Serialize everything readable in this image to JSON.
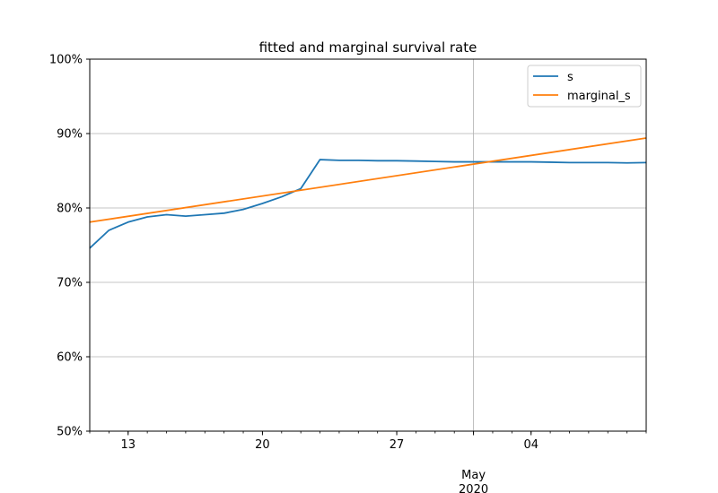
{
  "chart_data": {
    "type": "line",
    "title": "fitted and marginal survival rate",
    "xlabel": "",
    "ylabel": "",
    "ylim": [
      0.5,
      1.0
    ],
    "xlim": [
      "2020-04-11",
      "2020-05-10"
    ],
    "y_ticks": [
      0.5,
      0.6,
      0.7,
      0.8,
      0.9,
      1.0
    ],
    "y_tick_labels": [
      "50%",
      "60%",
      "70%",
      "80%",
      "90%",
      "100%"
    ],
    "x_major_ticks": [
      "2020-04-13",
      "2020-04-20",
      "2020-04-27",
      "2020-05-04"
    ],
    "x_major_labels": [
      "13",
      "20",
      "27",
      "04"
    ],
    "x_month_label": {
      "date": "2020-05-01",
      "month": "May",
      "year": "2020"
    },
    "grid": true,
    "legend_position": "top-right",
    "series": [
      {
        "name": "s",
        "color": "#1f77b4",
        "x": [
          "2020-04-11",
          "2020-04-12",
          "2020-04-13",
          "2020-04-14",
          "2020-04-15",
          "2020-04-16",
          "2020-04-17",
          "2020-04-18",
          "2020-04-19",
          "2020-04-20",
          "2020-04-21",
          "2020-04-22",
          "2020-04-23",
          "2020-04-24",
          "2020-04-25",
          "2020-04-26",
          "2020-04-27",
          "2020-04-28",
          "2020-04-29",
          "2020-04-30",
          "2020-05-01",
          "2020-05-02",
          "2020-05-03",
          "2020-05-04",
          "2020-05-05",
          "2020-05-06",
          "2020-05-07",
          "2020-05-08",
          "2020-05-09",
          "2020-05-10"
        ],
        "values": [
          0.746,
          0.77,
          0.781,
          0.788,
          0.791,
          0.789,
          0.791,
          0.793,
          0.798,
          0.806,
          0.815,
          0.826,
          0.865,
          0.864,
          0.864,
          0.8635,
          0.8635,
          0.863,
          0.8625,
          0.862,
          0.862,
          0.862,
          0.862,
          0.862,
          0.8615,
          0.861,
          0.861,
          0.861,
          0.8605,
          0.861
        ]
      },
      {
        "name": "marginal_s",
        "color": "#ff7f0e",
        "x": [
          "2020-04-11",
          "2020-05-10"
        ],
        "values": [
          0.781,
          0.894
        ]
      }
    ]
  }
}
